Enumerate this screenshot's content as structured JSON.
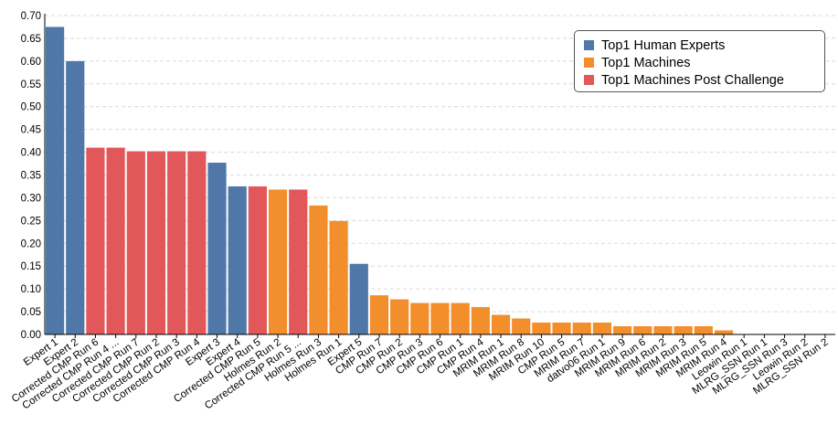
{
  "colors": {
    "human": "#4f78a8",
    "machine": "#f28e2b",
    "post": "#e25759",
    "grid": "#d9d9d9",
    "axis": "#000000"
  },
  "legend": [
    {
      "label": "Top1 Human Experts",
      "group": "human"
    },
    {
      "label": "Top1 Machines",
      "group": "machine"
    },
    {
      "label": "Top1 Machines Post Challenge",
      "group": "post"
    }
  ],
  "chart_data": {
    "type": "bar",
    "title": "",
    "xlabel": "",
    "ylabel": "",
    "ylim": [
      0,
      0.7
    ],
    "yticks": [
      "0.00",
      "0.05",
      "0.10",
      "0.15",
      "0.20",
      "0.25",
      "0.30",
      "0.35",
      "0.40",
      "0.45",
      "0.50",
      "0.55",
      "0.60",
      "0.65",
      "0.70"
    ],
    "grid": true,
    "legend_position": "top-right",
    "categories": [
      "Expert 1",
      "Expert 2",
      "Corrected CMP Run 6",
      "Corrected CMP Run 4 ...",
      "Corrected CMP Run 7",
      "Corrected CMP Run 2",
      "Corrected CMP Run 3",
      "Corrected CMP Run 4",
      "Expert 3",
      "Expert 4",
      "Corrected CMP Run 5",
      "Holmes Run 2",
      "Corrected CMP Run 5 ...",
      "Holmes Run 3",
      "Holmes Run 1",
      "Expert 5",
      "CMP Run 7",
      "CMP Run 2",
      "CMP Run 3",
      "CMP Run 6",
      "CMP Run 1",
      "CMP Run 4",
      "MRIM Run 1",
      "MRIM Run 8",
      "MRIM Run 10",
      "CMP Run 5",
      "MRIM Run 7",
      "datvo06 Run 1",
      "MRIM Run 9",
      "MRIM Run 6",
      "MRIM Run 2",
      "MRIM Run 3",
      "MRIM Run 5",
      "MRIM Run 4",
      "Leowin Run 1",
      "MLRG_SSN Run 1",
      "MLRG_SSN Run 3",
      "Leowin Run 2",
      "MLRG_SSN Run 2"
    ],
    "values": [
      0.675,
      0.6,
      0.41,
      0.41,
      0.402,
      0.402,
      0.402,
      0.402,
      0.377,
      0.325,
      0.325,
      0.318,
      0.318,
      0.283,
      0.249,
      0.155,
      0.086,
      0.077,
      0.069,
      0.069,
      0.069,
      0.06,
      0.043,
      0.035,
      0.026,
      0.026,
      0.026,
      0.026,
      0.018,
      0.018,
      0.018,
      0.018,
      0.018,
      0.009,
      0.0,
      0.0,
      0.0,
      0.0,
      0.0
    ],
    "groups": [
      "human",
      "human",
      "post",
      "post",
      "post",
      "post",
      "post",
      "post",
      "human",
      "human",
      "post",
      "machine",
      "post",
      "machine",
      "machine",
      "human",
      "machine",
      "machine",
      "machine",
      "machine",
      "machine",
      "machine",
      "machine",
      "machine",
      "machine",
      "machine",
      "machine",
      "machine",
      "machine",
      "machine",
      "machine",
      "machine",
      "machine",
      "machine",
      "machine",
      "machine",
      "machine",
      "machine",
      "machine"
    ]
  }
}
